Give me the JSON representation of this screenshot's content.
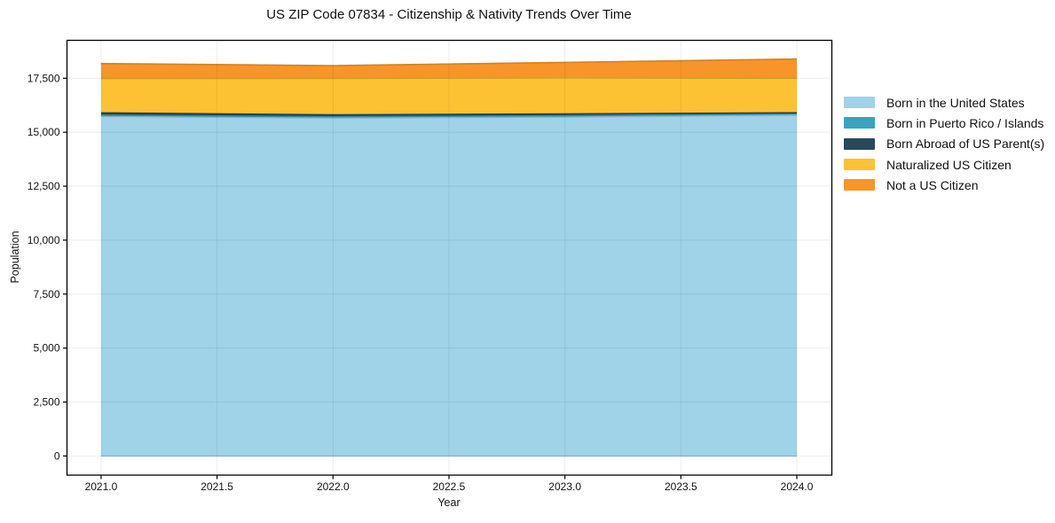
{
  "title": "US ZIP Code 07834 - Citizenship & Nativity Trends Over Time",
  "chart_data": {
    "type": "area",
    "stacked": true,
    "title": "US ZIP Code 07834 - Citizenship & Nativity Trends Over Time",
    "xlabel": "Year",
    "ylabel": "Population",
    "x": [
      2021,
      2022,
      2023,
      2024
    ],
    "series": [
      {
        "name": "Born in the United States",
        "color": "#a0d2e8",
        "values": [
          15730,
          15660,
          15700,
          15790
        ]
      },
      {
        "name": "Born in Puerto Rico / Islands",
        "color": "#3aa2c0",
        "values": [
          60,
          55,
          65,
          70
        ]
      },
      {
        "name": "Born Abroad of US Parent(s)",
        "color": "#28495c",
        "values": [
          105,
          90,
          80,
          40
        ]
      },
      {
        "name": "Naturalized US Citizen",
        "color": "#fcc233",
        "values": [
          1590,
          1690,
          1680,
          1600
        ]
      },
      {
        "name": "Not a US Citizen",
        "color": "#f7952a",
        "values": [
          695,
          590,
          710,
          890
        ]
      }
    ],
    "totals": [
      18180,
      18085,
      18235,
      18390
    ],
    "x_ticks": [
      2021.0,
      2021.5,
      2022.0,
      2022.5,
      2023.0,
      2023.5,
      2024.0
    ],
    "x_tick_labels": [
      "2021.0",
      "2021.5",
      "2022.0",
      "2022.5",
      "2023.0",
      "2023.5",
      "2024.0"
    ],
    "y_ticks": [
      0,
      2500,
      5000,
      7500,
      10000,
      12500,
      15000,
      17500
    ],
    "y_tick_labels": [
      "0",
      "2,500",
      "5,000",
      "7,500",
      "10,000",
      "12,500",
      "15,000",
      "17,500"
    ],
    "xlim": [
      2020.853,
      2024.151
    ],
    "ylim": [
      -887,
      19257
    ],
    "grid": true,
    "legend_position": "right-outside",
    "colors": {
      "spine": "#000000",
      "gridline": "rgba(0,0,0,0.07)",
      "text": "#111111",
      "background": "#ffffff"
    }
  }
}
